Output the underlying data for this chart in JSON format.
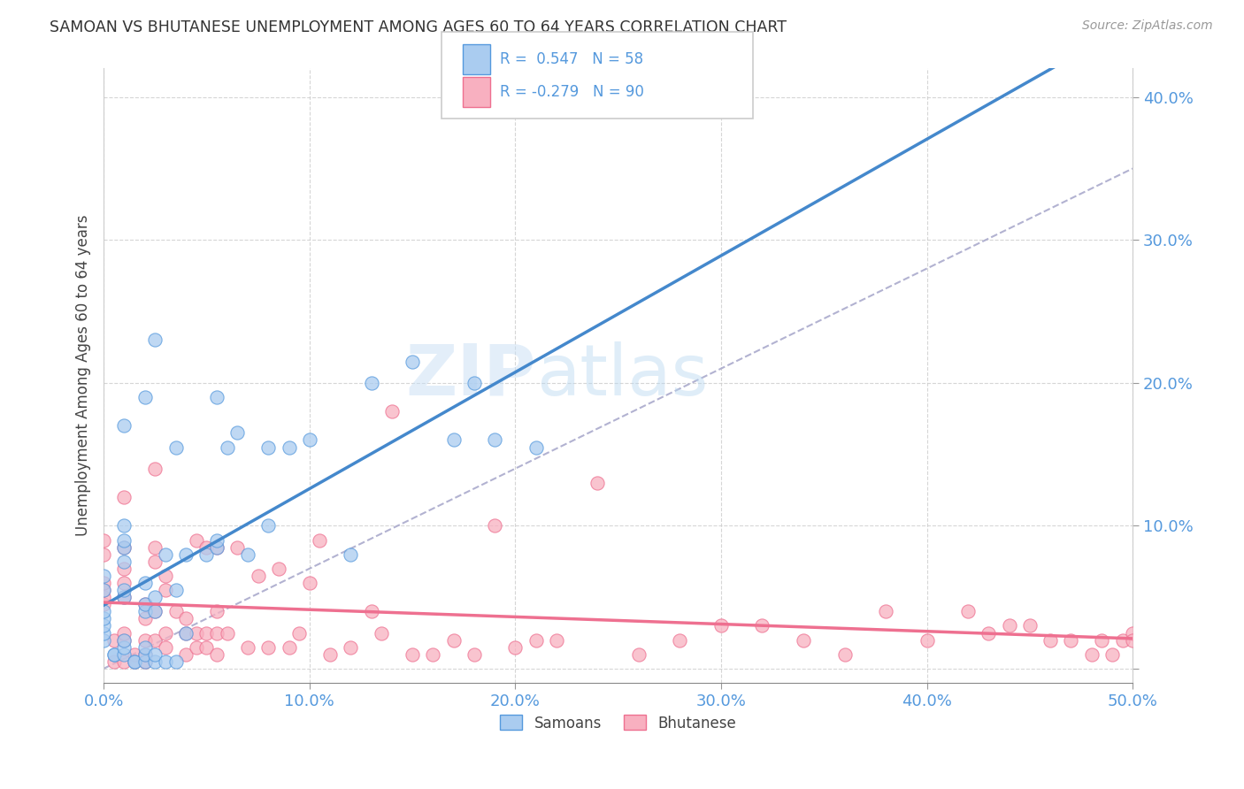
{
  "title": "SAMOAN VS BHUTANESE UNEMPLOYMENT AMONG AGES 60 TO 64 YEARS CORRELATION CHART",
  "source": "Source: ZipAtlas.com",
  "ylabel": "Unemployment Among Ages 60 to 64 years",
  "xlim": [
    0.0,
    0.5
  ],
  "ylim": [
    -0.01,
    0.42
  ],
  "xticks": [
    0.0,
    0.1,
    0.2,
    0.3,
    0.4,
    0.5
  ],
  "yticks": [
    0.0,
    0.1,
    0.2,
    0.3,
    0.4
  ],
  "xtick_labels": [
    "0.0%",
    "10.0%",
    "20.0%",
    "30.0%",
    "40.0%",
    "50.0%"
  ],
  "ytick_labels": [
    "",
    "10.0%",
    "20.0%",
    "30.0%",
    "40.0%"
  ],
  "background_color": "#ffffff",
  "grid_color": "#cccccc",
  "samoans_color": "#aaccf0",
  "bhutanese_color": "#f8b0c0",
  "samoans_edge_color": "#5599dd",
  "bhutanese_edge_color": "#ee7090",
  "samoans_line_color": "#4488cc",
  "bhutanese_line_color": "#ee7090",
  "dashed_line_color": "#aaaacc",
  "tick_color": "#5599dd",
  "R_samoan": 0.547,
  "N_samoan": 58,
  "R_bhutanese": -0.279,
  "N_bhutanese": 90,
  "samoans_x": [
    0.0,
    0.0,
    0.0,
    0.0,
    0.0,
    0.0,
    0.0,
    0.005,
    0.005,
    0.01,
    0.01,
    0.01,
    0.01,
    0.01,
    0.01,
    0.01,
    0.01,
    0.01,
    0.01,
    0.015,
    0.015,
    0.02,
    0.02,
    0.02,
    0.02,
    0.02,
    0.02,
    0.02,
    0.025,
    0.025,
    0.025,
    0.025,
    0.025,
    0.03,
    0.03,
    0.035,
    0.035,
    0.035,
    0.04,
    0.04,
    0.05,
    0.055,
    0.055,
    0.055,
    0.06,
    0.065,
    0.07,
    0.08,
    0.08,
    0.09,
    0.1,
    0.12,
    0.13,
    0.15,
    0.17,
    0.18,
    0.19,
    0.21
  ],
  "samoans_y": [
    0.02,
    0.025,
    0.03,
    0.035,
    0.04,
    0.055,
    0.065,
    0.01,
    0.01,
    0.01,
    0.015,
    0.02,
    0.05,
    0.055,
    0.075,
    0.085,
    0.09,
    0.1,
    0.17,
    0.005,
    0.005,
    0.005,
    0.01,
    0.015,
    0.04,
    0.045,
    0.06,
    0.19,
    0.005,
    0.01,
    0.04,
    0.05,
    0.23,
    0.005,
    0.08,
    0.005,
    0.055,
    0.155,
    0.025,
    0.08,
    0.08,
    0.085,
    0.09,
    0.19,
    0.155,
    0.165,
    0.08,
    0.1,
    0.155,
    0.155,
    0.16,
    0.08,
    0.2,
    0.215,
    0.16,
    0.2,
    0.16,
    0.155
  ],
  "bhutanese_x": [
    0.0,
    0.0,
    0.0,
    0.0,
    0.0,
    0.0,
    0.005,
    0.005,
    0.01,
    0.01,
    0.01,
    0.01,
    0.01,
    0.01,
    0.01,
    0.01,
    0.015,
    0.015,
    0.02,
    0.02,
    0.02,
    0.02,
    0.02,
    0.025,
    0.025,
    0.025,
    0.025,
    0.025,
    0.03,
    0.03,
    0.03,
    0.03,
    0.035,
    0.04,
    0.04,
    0.04,
    0.045,
    0.045,
    0.045,
    0.05,
    0.05,
    0.05,
    0.055,
    0.055,
    0.055,
    0.055,
    0.06,
    0.065,
    0.07,
    0.075,
    0.08,
    0.085,
    0.09,
    0.095,
    0.1,
    0.105,
    0.11,
    0.12,
    0.13,
    0.135,
    0.14,
    0.15,
    0.16,
    0.17,
    0.18,
    0.19,
    0.2,
    0.21,
    0.22,
    0.24,
    0.26,
    0.28,
    0.3,
    0.32,
    0.34,
    0.36,
    0.38,
    0.4,
    0.42,
    0.43,
    0.44,
    0.45,
    0.46,
    0.47,
    0.48,
    0.485,
    0.49,
    0.495,
    0.5,
    0.5
  ],
  "bhutanese_y": [
    0.045,
    0.05,
    0.055,
    0.06,
    0.08,
    0.09,
    0.005,
    0.02,
    0.005,
    0.02,
    0.025,
    0.05,
    0.06,
    0.07,
    0.085,
    0.12,
    0.005,
    0.01,
    0.005,
    0.01,
    0.02,
    0.035,
    0.045,
    0.075,
    0.085,
    0.14,
    0.02,
    0.04,
    0.015,
    0.025,
    0.055,
    0.065,
    0.04,
    0.01,
    0.025,
    0.035,
    0.09,
    0.015,
    0.025,
    0.085,
    0.015,
    0.025,
    0.01,
    0.025,
    0.04,
    0.085,
    0.025,
    0.085,
    0.015,
    0.065,
    0.015,
    0.07,
    0.015,
    0.025,
    0.06,
    0.09,
    0.01,
    0.015,
    0.04,
    0.025,
    0.18,
    0.01,
    0.01,
    0.02,
    0.01,
    0.1,
    0.015,
    0.02,
    0.02,
    0.13,
    0.01,
    0.02,
    0.03,
    0.03,
    0.02,
    0.01,
    0.04,
    0.02,
    0.04,
    0.025,
    0.03,
    0.03,
    0.02,
    0.02,
    0.01,
    0.02,
    0.01,
    0.02,
    0.025,
    0.02
  ]
}
